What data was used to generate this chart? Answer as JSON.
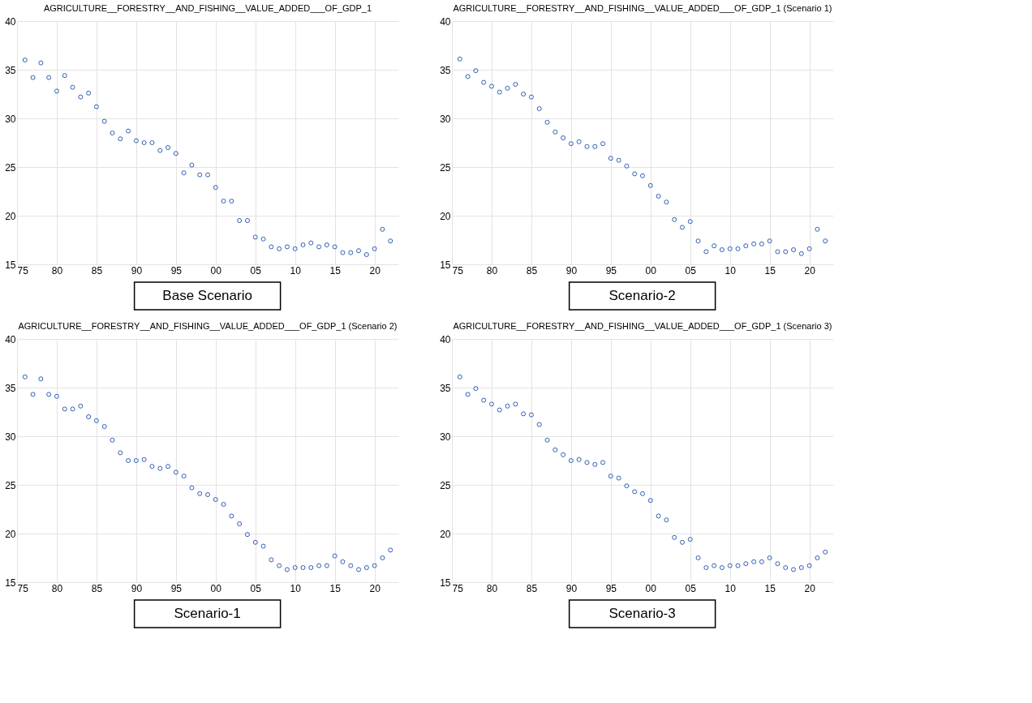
{
  "chart_data": [
    {
      "type": "scatter",
      "title": "AGRICULTURE__FORESTRY__AND_FISHING__VALUE_ADDED___OF_GDP_1",
      "annotations": [
        "Base Scenario"
      ],
      "marker": "circle",
      "grid": true,
      "color": "#2f5fb3",
      "xlim": [
        1975,
        2023
      ],
      "xticks": [
        {
          "value": 1975,
          "label": "75"
        },
        {
          "value": 1980,
          "label": "80"
        },
        {
          "value": 1985,
          "label": "85"
        },
        {
          "value": 1990,
          "label": "90"
        },
        {
          "value": 1995,
          "label": "95"
        },
        {
          "value": 2000,
          "label": "00"
        },
        {
          "value": 2005,
          "label": "05"
        },
        {
          "value": 2010,
          "label": "10"
        },
        {
          "value": 2015,
          "label": "15"
        },
        {
          "value": 2020,
          "label": "20"
        }
      ],
      "ylim": [
        15,
        40
      ],
      "yticks": [
        15,
        20,
        25,
        30,
        35,
        40
      ],
      "x": [
        1976,
        1977,
        1978,
        1979,
        1980,
        1981,
        1982,
        1983,
        1984,
        1985,
        1986,
        1987,
        1988,
        1989,
        1990,
        1991,
        1992,
        1993,
        1994,
        1995,
        1996,
        1997,
        1998,
        1999,
        2000,
        2001,
        2002,
        2003,
        2004,
        2005,
        2006,
        2007,
        2008,
        2009,
        2010,
        2011,
        2012,
        2013,
        2014,
        2015,
        2016,
        2017,
        2018,
        2019,
        2020,
        2021,
        2022
      ],
      "values": [
        36.0,
        34.2,
        35.7,
        34.2,
        32.8,
        34.4,
        33.2,
        32.2,
        32.6,
        31.2,
        29.7,
        28.5,
        27.9,
        28.7,
        27.7,
        27.5,
        27.5,
        26.7,
        27.0,
        26.4,
        24.4,
        25.2,
        24.2,
        24.2,
        22.9,
        21.5,
        21.5,
        19.5,
        19.5,
        17.8,
        17.6,
        16.8,
        16.6,
        16.8,
        16.6,
        17.0,
        17.2,
        16.8,
        17.0,
        16.8,
        16.2,
        16.2,
        16.4,
        16.0,
        16.6,
        18.6,
        17.4
      ]
    },
    {
      "type": "scatter",
      "title": "AGRICULTURE__FORESTRY__AND_FISHING__VALUE_ADDED___OF_GDP_1 (Scenario 1)",
      "annotations": [
        "Scenario-2"
      ],
      "marker": "circle",
      "grid": true,
      "color": "#2f5fb3",
      "xlim": [
        1975,
        2023
      ],
      "xticks": [
        {
          "value": 1975,
          "label": "75"
        },
        {
          "value": 1980,
          "label": "80"
        },
        {
          "value": 1985,
          "label": "85"
        },
        {
          "value": 1990,
          "label": "90"
        },
        {
          "value": 1995,
          "label": "95"
        },
        {
          "value": 2000,
          "label": "00"
        },
        {
          "value": 2005,
          "label": "05"
        },
        {
          "value": 2010,
          "label": "10"
        },
        {
          "value": 2015,
          "label": "15"
        },
        {
          "value": 2020,
          "label": "20"
        }
      ],
      "ylim": [
        15,
        40
      ],
      "yticks": [
        15,
        20,
        25,
        30,
        35,
        40
      ],
      "x": [
        1976,
        1977,
        1978,
        1979,
        1980,
        1981,
        1982,
        1983,
        1984,
        1985,
        1986,
        1987,
        1988,
        1989,
        1990,
        1991,
        1992,
        1993,
        1994,
        1995,
        1996,
        1997,
        1998,
        1999,
        2000,
        2001,
        2002,
        2003,
        2004,
        2005,
        2006,
        2007,
        2008,
        2009,
        2010,
        2011,
        2012,
        2013,
        2014,
        2015,
        2016,
        2017,
        2018,
        2019,
        2020,
        2021,
        2022
      ],
      "values": [
        36.1,
        34.3,
        34.9,
        33.7,
        33.3,
        32.7,
        33.1,
        33.5,
        32.5,
        32.2,
        31.0,
        29.6,
        28.6,
        28.0,
        27.4,
        27.6,
        27.1,
        27.1,
        27.4,
        25.9,
        25.7,
        25.1,
        24.3,
        24.1,
        23.1,
        22.0,
        21.4,
        19.6,
        18.8,
        19.4,
        17.4,
        16.3,
        16.9,
        16.5,
        16.6,
        16.6,
        16.9,
        17.1,
        17.1,
        17.4,
        16.3,
        16.3,
        16.5,
        16.1,
        16.6,
        18.6,
        17.4
      ]
    },
    {
      "type": "scatter",
      "title": "AGRICULTURE__FORESTRY__AND_FISHING__VALUE_ADDED___OF_GDP_1 (Scenario 2)",
      "annotations": [
        "Scenario-1"
      ],
      "marker": "circle",
      "grid": true,
      "color": "#2f5fb3",
      "xlim": [
        1975,
        2023
      ],
      "xticks": [
        {
          "value": 1975,
          "label": "75"
        },
        {
          "value": 1980,
          "label": "80"
        },
        {
          "value": 1985,
          "label": "85"
        },
        {
          "value": 1990,
          "label": "90"
        },
        {
          "value": 1995,
          "label": "95"
        },
        {
          "value": 2000,
          "label": "00"
        },
        {
          "value": 2005,
          "label": "05"
        },
        {
          "value": 2010,
          "label": "10"
        },
        {
          "value": 2015,
          "label": "15"
        },
        {
          "value": 2020,
          "label": "20"
        }
      ],
      "ylim": [
        15,
        40
      ],
      "yticks": [
        15,
        20,
        25,
        30,
        35,
        40
      ],
      "x": [
        1976,
        1977,
        1978,
        1979,
        1980,
        1981,
        1982,
        1983,
        1984,
        1985,
        1986,
        1987,
        1988,
        1989,
        1990,
        1991,
        1992,
        1993,
        1994,
        1995,
        1996,
        1997,
        1998,
        1999,
        2000,
        2001,
        2002,
        2003,
        2004,
        2005,
        2006,
        2007,
        2008,
        2009,
        2010,
        2011,
        2012,
        2013,
        2014,
        2015,
        2016,
        2017,
        2018,
        2019,
        2020,
        2021,
        2022
      ],
      "values": [
        36.1,
        34.3,
        35.9,
        34.3,
        34.1,
        32.8,
        32.8,
        33.1,
        32.0,
        31.6,
        31.0,
        29.6,
        28.3,
        27.5,
        27.5,
        27.6,
        26.9,
        26.7,
        26.9,
        26.3,
        25.9,
        24.7,
        24.1,
        24.0,
        23.5,
        23.0,
        21.8,
        21.0,
        19.9,
        19.1,
        18.7,
        17.3,
        16.7,
        16.3,
        16.5,
        16.5,
        16.5,
        16.7,
        16.7,
        17.7,
        17.1,
        16.7,
        16.3,
        16.5,
        16.7,
        17.5,
        18.3
      ]
    },
    {
      "type": "scatter",
      "title": "AGRICULTURE__FORESTRY__AND_FISHING__VALUE_ADDED___OF_GDP_1 (Scenario 3)",
      "annotations": [
        "Scenario-3"
      ],
      "marker": "circle",
      "grid": true,
      "color": "#2f5fb3",
      "xlim": [
        1975,
        2023
      ],
      "xticks": [
        {
          "value": 1975,
          "label": "75"
        },
        {
          "value": 1980,
          "label": "80"
        },
        {
          "value": 1985,
          "label": "85"
        },
        {
          "value": 1990,
          "label": "90"
        },
        {
          "value": 1995,
          "label": "95"
        },
        {
          "value": 2000,
          "label": "00"
        },
        {
          "value": 2005,
          "label": "05"
        },
        {
          "value": 2010,
          "label": "10"
        },
        {
          "value": 2015,
          "label": "15"
        },
        {
          "value": 2020,
          "label": "20"
        }
      ],
      "ylim": [
        15,
        40
      ],
      "yticks": [
        15,
        20,
        25,
        30,
        35,
        40
      ],
      "x": [
        1976,
        1977,
        1978,
        1979,
        1980,
        1981,
        1982,
        1983,
        1984,
        1985,
        1986,
        1987,
        1988,
        1989,
        1990,
        1991,
        1992,
        1993,
        1994,
        1995,
        1996,
        1997,
        1998,
        1999,
        2000,
        2001,
        2002,
        2003,
        2004,
        2005,
        2006,
        2007,
        2008,
        2009,
        2010,
        2011,
        2012,
        2013,
        2014,
        2015,
        2016,
        2017,
        2018,
        2019,
        2020,
        2021,
        2022
      ],
      "values": [
        36.1,
        34.3,
        34.9,
        33.7,
        33.3,
        32.7,
        33.1,
        33.3,
        32.3,
        32.2,
        31.2,
        29.6,
        28.6,
        28.1,
        27.5,
        27.6,
        27.3,
        27.1,
        27.3,
        25.9,
        25.7,
        24.9,
        24.3,
        24.1,
        23.4,
        21.8,
        21.4,
        19.6,
        19.1,
        19.4,
        17.5,
        16.5,
        16.7,
        16.5,
        16.7,
        16.7,
        16.9,
        17.1,
        17.1,
        17.5,
        16.9,
        16.5,
        16.3,
        16.5,
        16.7,
        17.5,
        18.1
      ]
    }
  ]
}
